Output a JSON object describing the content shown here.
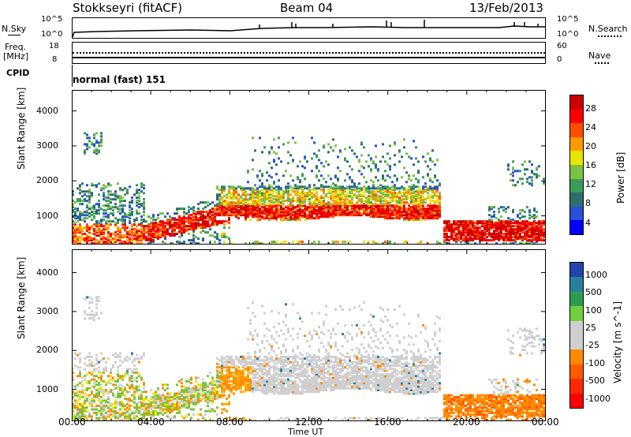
{
  "header": {
    "station": "Stokkseyri (fitACF)",
    "beam": "Beam 04",
    "date": "13/Feb/2013"
  },
  "top_panels": {
    "nsky_label": "N.Sky",
    "nsky_ticks": [
      "10^5",
      "10^0"
    ],
    "nsearch_label": "N.Search",
    "nsearch_ticks": [
      "10^5",
      "10^0"
    ],
    "freq_label_1": "Freq.",
    "freq_label_2": "[MHz]",
    "freq_ticks": [
      "18",
      "8"
    ],
    "nave_label": "Nave",
    "nave_ticks": [
      "60",
      "0"
    ],
    "cpid_label": "CPID",
    "cpid_value": "normal (fast) 151"
  },
  "chart_data": [
    {
      "type": "heatmap",
      "ylabel": "Slant Range [km]",
      "ylim": [
        180,
        4600
      ],
      "yticks": [
        "4000",
        "3000",
        "2000",
        "1000"
      ],
      "colorbar": {
        "label": "Power [dB]",
        "ticks": [
          "28",
          "24",
          "20",
          "16",
          "12",
          "8",
          "4"
        ],
        "colors": [
          "#0000ff",
          "#2a4fd8",
          "#2f6e6e",
          "#3a9c5a",
          "#7cc242",
          "#e6e600",
          "#ff9900",
          "#ff4d00",
          "#ff0000",
          "#cc0000"
        ]
      },
      "regions": [
        {
          "t": [
            0,
            3.5
          ],
          "r": [
            300,
            1900
          ],
          "level": "mixed"
        },
        {
          "t": [
            3.5,
            8
          ],
          "r": [
            500,
            1200
          ],
          "level": "strong"
        },
        {
          "t": [
            7.5,
            18.5
          ],
          "r": [
            1000,
            1800
          ],
          "level": "strong"
        },
        {
          "t": [
            8.5,
            18.5
          ],
          "r": [
            1800,
            3200
          ],
          "level": "weak"
        },
        {
          "t": [
            19,
            24
          ],
          "r": [
            300,
            900
          ],
          "level": "strong"
        }
      ]
    },
    {
      "type": "heatmap",
      "ylabel": "Slant Range [km]",
      "ylim": [
        180,
        4600
      ],
      "yticks": [
        "4000",
        "3000",
        "2000",
        "1000"
      ],
      "xlabel": "Time UT",
      "xticks": [
        "00:00",
        "04:00",
        "08:00",
        "12:00",
        "16:00",
        "20:00",
        "00:00"
      ],
      "colorbar": {
        "label": "Velocity [m s^-1]",
        "ticks": [
          "1000",
          "500",
          "100",
          "25",
          "-25",
          "-100",
          "-500",
          "-1000"
        ],
        "colors": [
          "#2244aa",
          "#2a7f9f",
          "#2e9c50",
          "#6fcf3c",
          "#cfcfcf",
          "#cfcfcf",
          "#ff8c00",
          "#ff5a00",
          "#ff2a00",
          "#ff0000"
        ]
      }
    }
  ]
}
